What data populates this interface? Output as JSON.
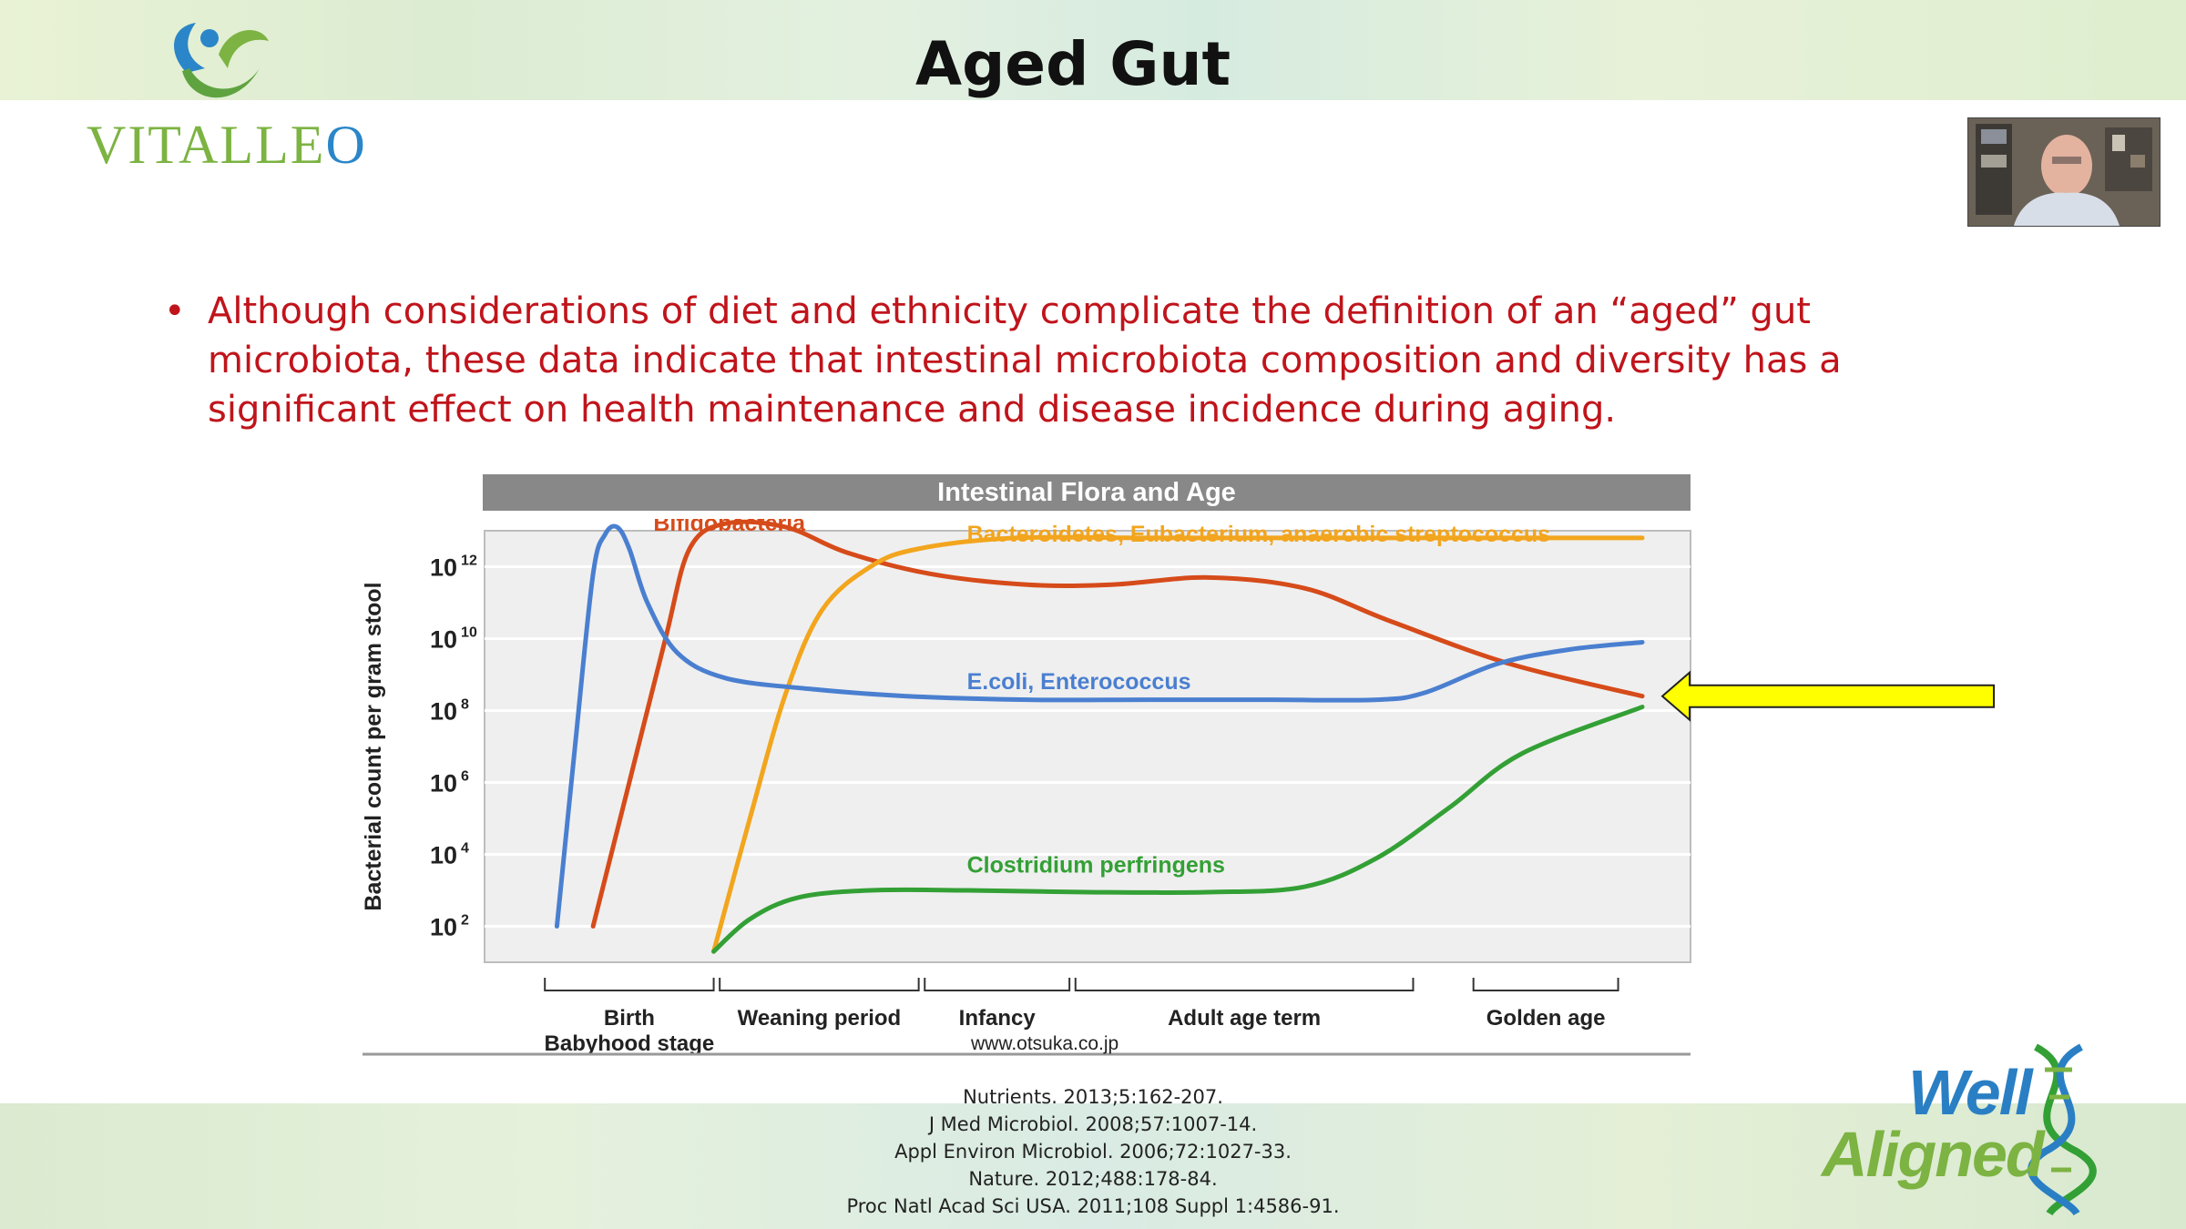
{
  "slide": {
    "title": "Aged Gut",
    "bullet": "Although considerations of diet and ethnicity complicate the definition of an “aged” gut microbiota, these data indicate that intestinal microbiota composition and diversity has a significant effect on health maintenance and disease incidence during aging.",
    "source": "www.otsuka.co.jp",
    "references": [
      "Nutrients. 2013;5:162-207.",
      "J Med Microbiol. 2008;57:1007-14.",
      "Appl Environ Microbiol. 2006;72:1027-33.",
      "Nature. 2012;488:178-84.",
      "Proc Natl Acad Sci USA. 2011;108 Suppl 1:4586-91."
    ]
  },
  "logos": {
    "vitalleo_pre": "VITALLE",
    "vitalleo_o": "O",
    "wellaligned_line1": "Well",
    "wellaligned_line2": "Aligned"
  },
  "colors": {
    "bifidobacteria": "#d64b1a",
    "bacteroidetes": "#f2a51d",
    "ecoli": "#4a7fd0",
    "clostridium": "#33a035",
    "arrow": "#ffff00",
    "bullet_text": "#c0141b"
  },
  "chart_data": {
    "type": "line",
    "title": "Intestinal Flora and Age",
    "ylabel": "Bacterial count per gram stool",
    "y_scale": "log10",
    "ylim": [
      1,
      13
    ],
    "y_ticks": [
      {
        "exp": 2,
        "base": "10",
        "sup": "2"
      },
      {
        "exp": 4,
        "base": "10",
        "sup": "4"
      },
      {
        "exp": 6,
        "base": "10",
        "sup": "6"
      },
      {
        "exp": 8,
        "base": "10",
        "sup": "8"
      },
      {
        "exp": 10,
        "base": "10",
        "sup": "10"
      },
      {
        "exp": 12,
        "base": "10",
        "sup": "12"
      }
    ],
    "xlim": [
      0,
      100
    ],
    "stages": [
      {
        "label": "Birth",
        "label2": "Babyhood stage",
        "start": 5,
        "end": 19
      },
      {
        "label": "Weaning period",
        "label2": "",
        "start": 19.5,
        "end": 36
      },
      {
        "label": "Infancy",
        "label2": "",
        "start": 36.5,
        "end": 48.5
      },
      {
        "label": "Adult age term",
        "label2": "",
        "start": 49,
        "end": 77
      },
      {
        "label": "Golden age",
        "label2": "",
        "start": 82,
        "end": 94
      }
    ],
    "series": [
      {
        "name": "Bifidobacteria",
        "color": "#d64b1a",
        "label_pos": [
          14,
          13.0
        ],
        "x": [
          9,
          12,
          15,
          17,
          20,
          25,
          30,
          37,
          45,
          52,
          60,
          68,
          75,
          85,
          96
        ],
        "y": [
          2,
          6,
          10,
          12.5,
          13.2,
          13.1,
          12.4,
          11.8,
          11.5,
          11.5,
          11.7,
          11.4,
          10.5,
          9.3,
          8.4
        ]
      },
      {
        "name": "Bacteroidetes, Eubacterium, anaerobic streptococcus",
        "color": "#f2a51d",
        "label_pos": [
          40,
          12.7
        ],
        "x": [
          19,
          22,
          25,
          28,
          32,
          36,
          44,
          55,
          70,
          85,
          96
        ],
        "y": [
          1.3,
          5,
          8.5,
          10.8,
          12.0,
          12.5,
          12.8,
          12.8,
          12.8,
          12.8,
          12.8
        ]
      },
      {
        "name": "E.coli, Enterococcus",
        "color": "#4a7fd0",
        "label_pos": [
          40,
          8.6
        ],
        "x": [
          6,
          7.5,
          9,
          10,
          11,
          12,
          13.5,
          16,
          20,
          27,
          35,
          45,
          55,
          65,
          74,
          78,
          84,
          90,
          96
        ],
        "y": [
          2,
          7,
          11.8,
          12.9,
          13.1,
          12.5,
          11,
          9.6,
          8.9,
          8.6,
          8.4,
          8.3,
          8.3,
          8.3,
          8.3,
          8.5,
          9.3,
          9.7,
          9.9
        ]
      },
      {
        "name": "Clostridium perfringens",
        "color": "#33a035",
        "label_pos": [
          40,
          3.5
        ],
        "x": [
          19,
          22,
          26,
          32,
          40,
          50,
          60,
          68,
          74,
          80,
          86,
          96
        ],
        "y": [
          1.3,
          2.2,
          2.8,
          3.0,
          3.0,
          2.95,
          2.95,
          3.1,
          3.9,
          5.3,
          6.8,
          8.1
        ]
      }
    ]
  }
}
